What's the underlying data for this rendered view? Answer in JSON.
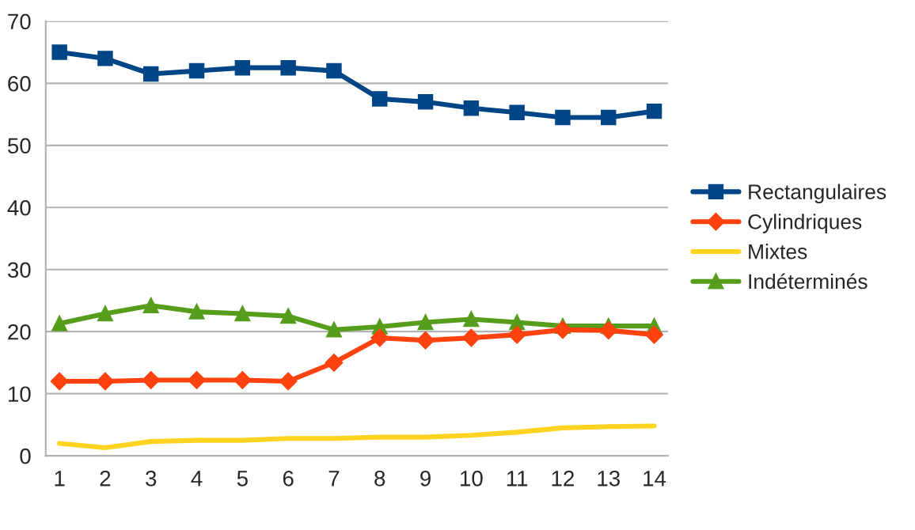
{
  "chart_data": {
    "type": "line",
    "categories": [
      "1",
      "2",
      "3",
      "4",
      "5",
      "6",
      "7",
      "8",
      "9",
      "10",
      "11",
      "12",
      "13",
      "14"
    ],
    "series": [
      {
        "name": "Rectangulaires",
        "color": "#004586",
        "marker": "square",
        "values": [
          65,
          64,
          61.5,
          62,
          62.5,
          62.5,
          62,
          57.5,
          57,
          56,
          55.3,
          54.5,
          54.5,
          55.5
        ]
      },
      {
        "name": "Cylindriques",
        "color": "#ff420e",
        "marker": "diamond",
        "values": [
          12,
          12,
          12.2,
          12.2,
          12.2,
          12,
          15,
          19,
          18.6,
          19,
          19.5,
          20.3,
          20.2,
          19.5
        ]
      },
      {
        "name": "Mixtes",
        "color": "#ffd320",
        "marker": "none",
        "values": [
          2,
          1.3,
          2.3,
          2.5,
          2.5,
          2.8,
          2.8,
          3,
          3,
          3.3,
          3.8,
          4.5,
          4.7,
          4.8
        ]
      },
      {
        "name": "Indéterminés",
        "color": "#579d1c",
        "marker": "triangle",
        "values": [
          21.3,
          22.9,
          24.2,
          23.2,
          22.9,
          22.5,
          20.3,
          20.8,
          21.5,
          22,
          21.5,
          20.9,
          20.9,
          20.9
        ]
      }
    ],
    "ylim": [
      0,
      70
    ],
    "yticks": [
      0,
      10,
      20,
      30,
      40,
      50,
      60,
      70
    ],
    "grid": "y",
    "legend": "right",
    "line_style": "solid"
  }
}
